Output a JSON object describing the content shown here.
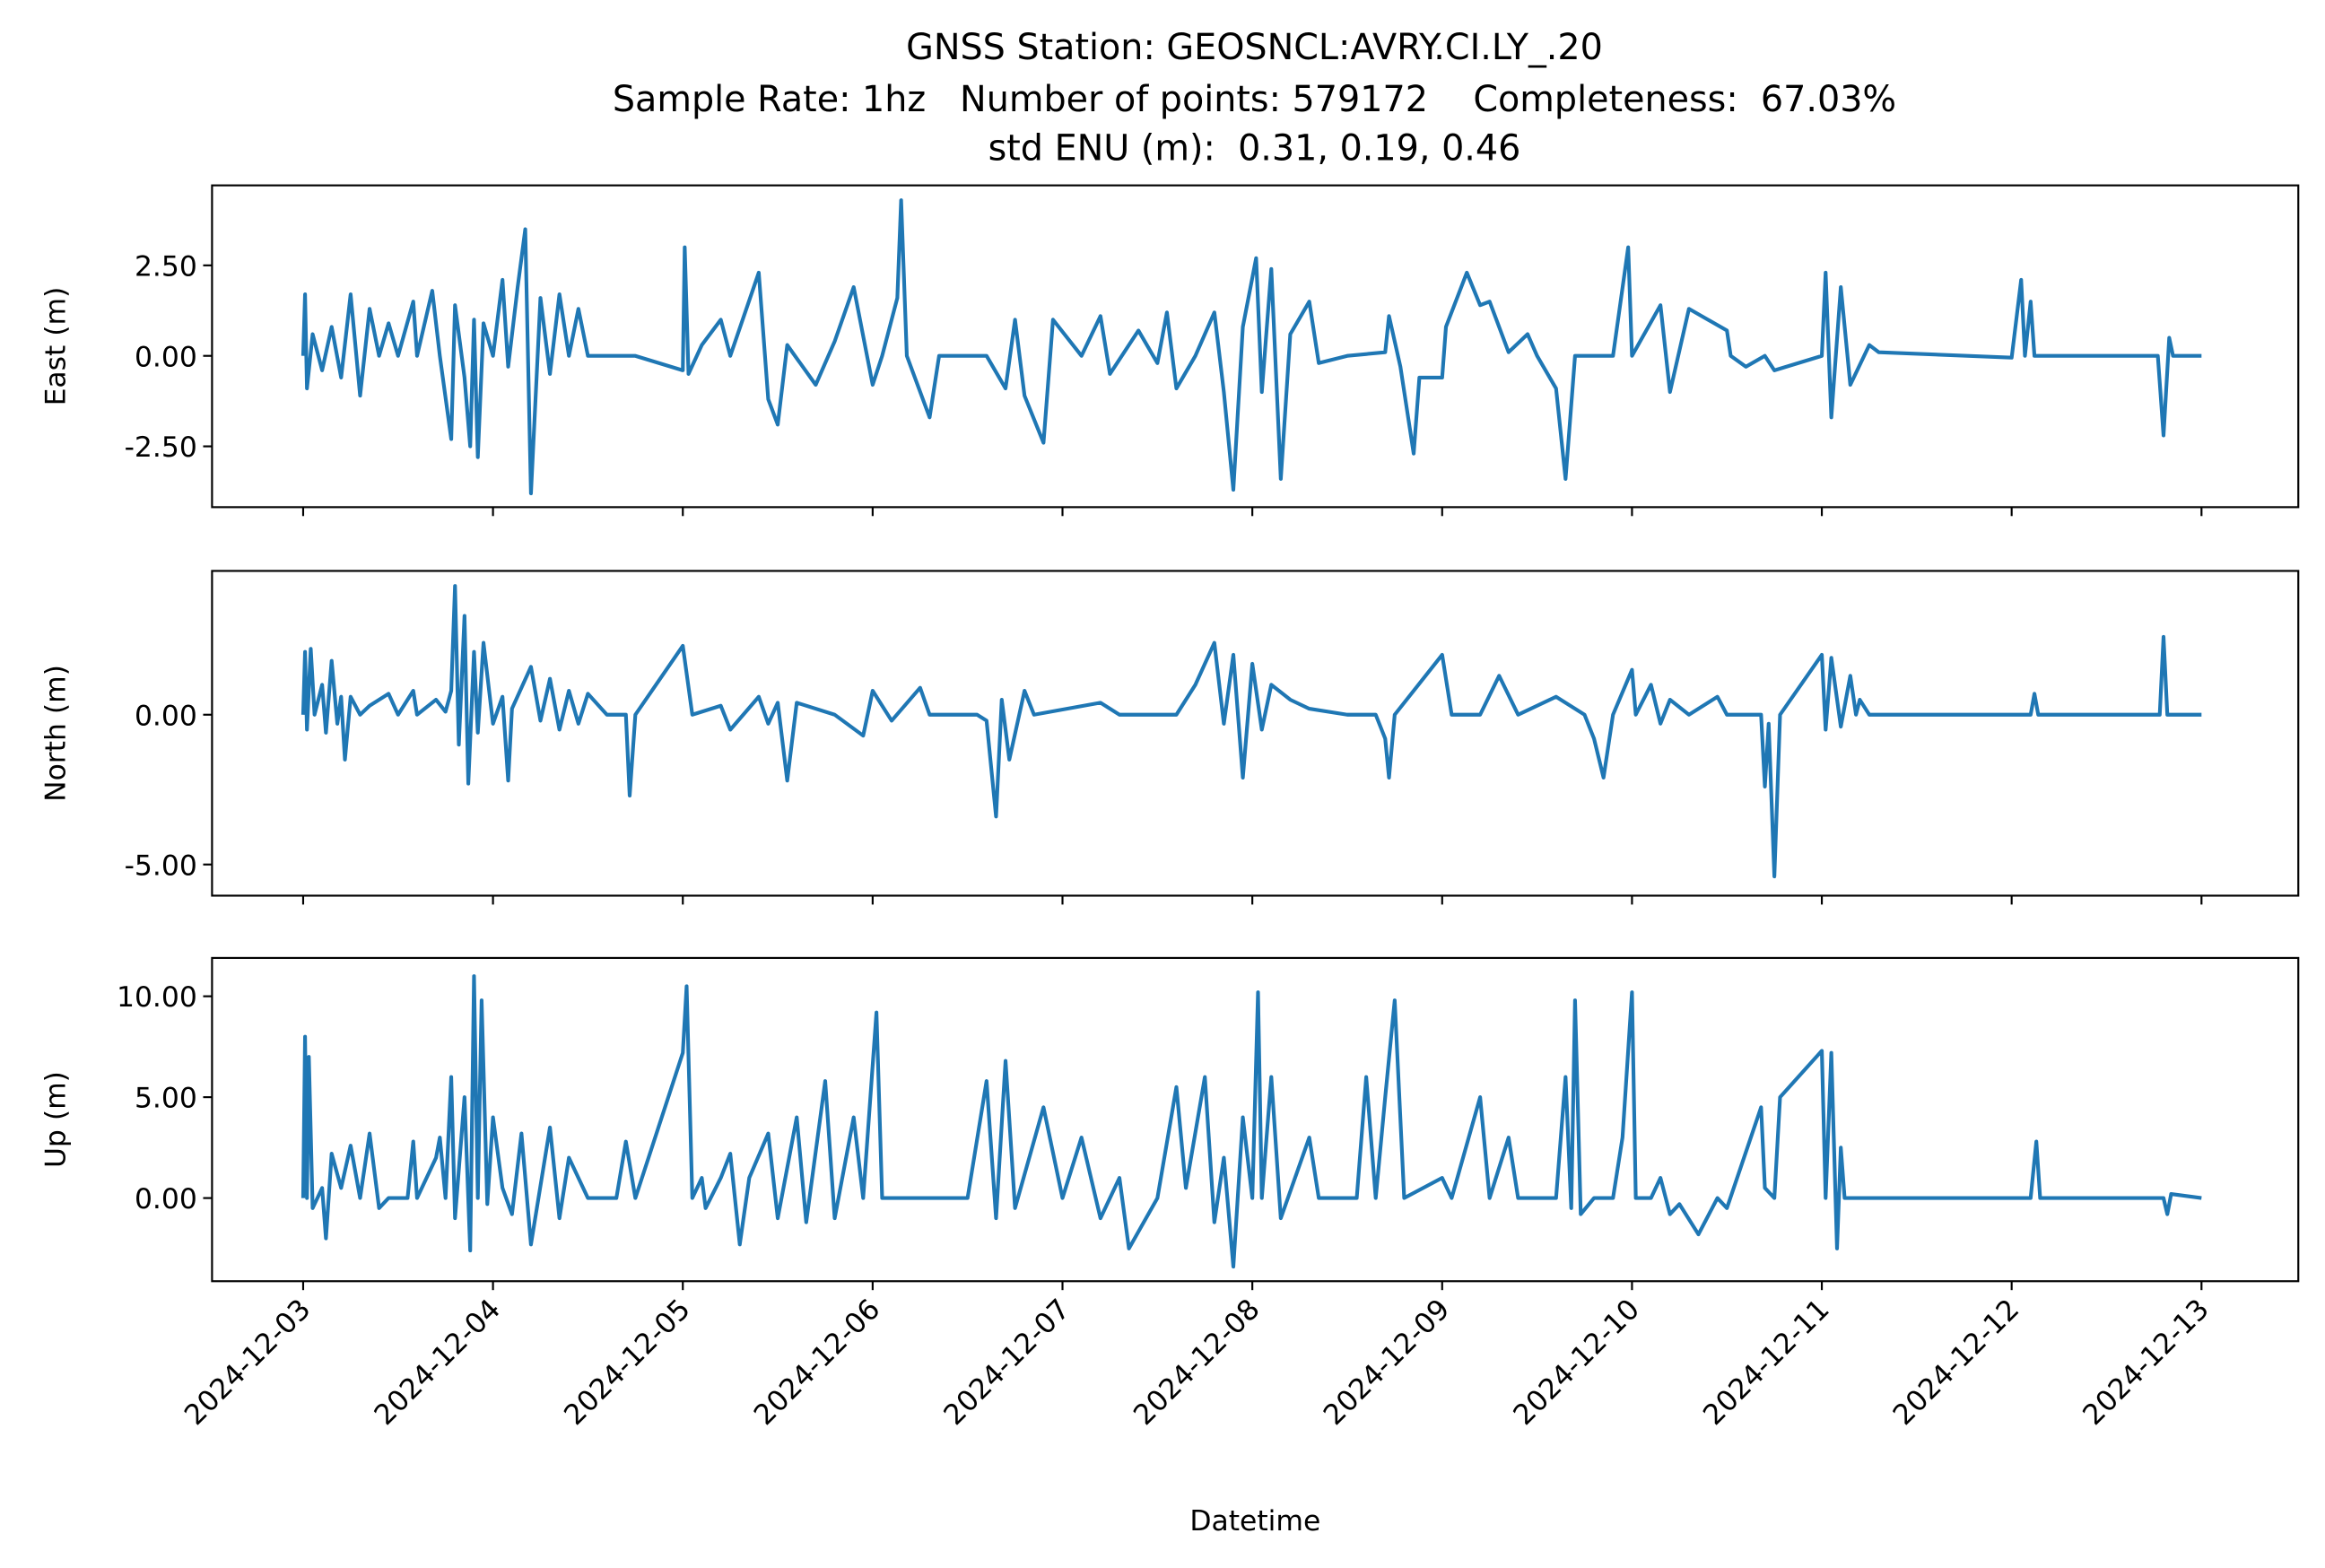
{
  "title": [
    "GNSS Station: GEOSNCL:AVRY.CI.LY_.20",
    "Sample Rate: 1hz   Number of points: 579172    Completeness:  67.03%",
    "std ENU (m):  0.31, 0.19, 0.46"
  ],
  "chart_data": [
    {
      "type": "line",
      "ylabel": "East (m)",
      "color": "#1f77b4",
      "xlim": [
        -0.48,
        10.51
      ],
      "ylim": [
        -4.18,
        4.71
      ],
      "yticks": [
        {
          "value": -2.5,
          "label": "-2.50"
        },
        {
          "value": 0,
          "label": "0.00"
        },
        {
          "value": 2.5,
          "label": "2.50"
        }
      ],
      "x": [
        0,
        0.01,
        0.02,
        0.05,
        0.1,
        0.15,
        0.2,
        0.25,
        0.3,
        0.35,
        0.4,
        0.45,
        0.5,
        0.58,
        0.6,
        0.68,
        0.72,
        0.78,
        0.8,
        0.85,
        0.88,
        0.9,
        0.92,
        0.95,
        1.0,
        1.05,
        1.08,
        1.13,
        1.17,
        1.2,
        1.25,
        1.3,
        1.35,
        1.4,
        1.45,
        1.5,
        1.75,
        2.0,
        2.01,
        2.03,
        2.1,
        2.2,
        2.25,
        2.4,
        2.45,
        2.5,
        2.55,
        2.7,
        2.8,
        2.9,
        3.0,
        3.05,
        3.13,
        3.15,
        3.18,
        3.3,
        3.35,
        3.6,
        3.7,
        3.75,
        3.8,
        3.9,
        3.95,
        4.1,
        4.2,
        4.25,
        4.4,
        4.5,
        4.55,
        4.6,
        4.7,
        4.8,
        4.85,
        4.9,
        4.95,
        5.02,
        5.05,
        5.1,
        5.15,
        5.2,
        5.3,
        5.35,
        5.5,
        5.7,
        5.72,
        5.78,
        5.85,
        5.88,
        6.0,
        6.02,
        6.13,
        6.2,
        6.25,
        6.35,
        6.45,
        6.5,
        6.6,
        6.65,
        6.7,
        6.9,
        6.98,
        7.0,
        7.15,
        7.2,
        7.3,
        7.5,
        7.52,
        7.6,
        7.7,
        7.75,
        8.0,
        8.02,
        8.05,
        8.1,
        8.15,
        8.25,
        8.3,
        9.0,
        9.05,
        9.07,
        9.1,
        9.12,
        9.77,
        9.8,
        9.83,
        9.85,
        10.0
      ],
      "values": [
        0,
        1.7,
        -0.9,
        0.6,
        -0.4,
        0.8,
        -0.6,
        1.7,
        -1.1,
        1.3,
        0,
        0.9,
        0,
        1.5,
        0,
        1.8,
        0,
        -2.3,
        1.4,
        -0.6,
        -2.5,
        1.0,
        -2.8,
        0.9,
        0,
        2.1,
        -0.3,
        1.9,
        3.5,
        -3.8,
        1.6,
        -0.5,
        1.7,
        0,
        1.3,
        0,
        0,
        -0.4,
        3.0,
        -0.5,
        0.3,
        1.0,
        0,
        2.3,
        -1.2,
        -1.9,
        0.3,
        -0.8,
        0.4,
        1.9,
        -0.8,
        0,
        1.6,
        4.3,
        0,
        -1.7,
        0,
        0,
        -0.9,
        1.0,
        -1.1,
        -2.4,
        1.0,
        0,
        1.1,
        -0.5,
        0.7,
        -0.2,
        1.2,
        -0.9,
        0,
        1.2,
        -1.0,
        -3.7,
        0.8,
        2.7,
        -1.0,
        2.4,
        -3.4,
        0.6,
        1.5,
        -0.2,
        0,
        0.1,
        1.1,
        -0.3,
        -2.7,
        -0.6,
        -0.6,
        0.8,
        2.3,
        1.4,
        1.5,
        0.1,
        0.6,
        0,
        -0.9,
        -3.4,
        0,
        0,
        3.0,
        0,
        1.4,
        -1.0,
        1.3,
        0.7,
        0,
        -0.3,
        0,
        -0.4,
        0,
        2.3,
        -1.7,
        1.9,
        -0.8,
        0.3,
        0.1,
        -0.05,
        2.1,
        0,
        1.5,
        0,
        0,
        -2.2,
        0.5,
        0,
        0
      ]
    },
    {
      "type": "line",
      "ylabel": "North (m)",
      "color": "#1f77b4",
      "xlim": [
        -0.48,
        10.51
      ],
      "ylim": [
        -6.04,
        4.8
      ],
      "yticks": [
        {
          "value": -5,
          "label": "-5.00"
        },
        {
          "value": 0,
          "label": "0.00"
        }
      ],
      "x": [
        0,
        0.01,
        0.02,
        0.04,
        0.06,
        0.1,
        0.12,
        0.15,
        0.18,
        0.2,
        0.22,
        0.25,
        0.3,
        0.35,
        0.45,
        0.5,
        0.58,
        0.6,
        0.7,
        0.75,
        0.78,
        0.8,
        0.82,
        0.85,
        0.87,
        0.9,
        0.92,
        0.95,
        1.0,
        1.05,
        1.08,
        1.1,
        1.2,
        1.25,
        1.3,
        1.35,
        1.4,
        1.45,
        1.5,
        1.6,
        1.7,
        1.72,
        1.75,
        2.0,
        2.05,
        2.2,
        2.25,
        2.4,
        2.45,
        2.5,
        2.55,
        2.6,
        2.8,
        2.95,
        3.0,
        3.1,
        3.25,
        3.3,
        3.55,
        3.6,
        3.65,
        3.68,
        3.72,
        3.8,
        3.85,
        4.2,
        4.3,
        4.6,
        4.7,
        4.8,
        4.85,
        4.9,
        4.95,
        5.0,
        5.05,
        5.1,
        5.2,
        5.3,
        5.5,
        5.65,
        5.7,
        5.72,
        5.75,
        6.0,
        6.05,
        6.2,
        6.3,
        6.4,
        6.6,
        6.75,
        6.8,
        6.85,
        6.9,
        7.0,
        7.02,
        7.1,
        7.15,
        7.2,
        7.3,
        7.45,
        7.5,
        7.68,
        7.7,
        7.72,
        7.75,
        7.78,
        8.0,
        8.02,
        8.05,
        8.1,
        8.15,
        8.18,
        8.2,
        8.25,
        9.1,
        9.12,
        9.14,
        9.78,
        9.8,
        9.82,
        10.0
      ],
      "values": [
        0,
        2.1,
        -0.5,
        2.2,
        0,
        1.0,
        -0.6,
        1.8,
        -0.3,
        0.6,
        -1.5,
        0.6,
        0,
        0.3,
        0.7,
        0,
        0.8,
        0,
        0.5,
        0.1,
        0.8,
        4.3,
        -1.0,
        3.3,
        -2.3,
        2.1,
        -0.6,
        2.4,
        -0.3,
        0.6,
        -2.2,
        0.2,
        1.6,
        -0.2,
        1.2,
        -0.5,
        0.8,
        -0.3,
        0.7,
        0,
        0,
        -2.7,
        0,
        2.3,
        0,
        0.3,
        -0.5,
        0.6,
        -0.3,
        0.4,
        -2.2,
        0.4,
        0,
        -0.7,
        0.8,
        -0.2,
        0.9,
        0,
        0,
        -0.2,
        -3.4,
        0.5,
        -1.5,
        0.8,
        0,
        0.4,
        0,
        0,
        1.0,
        2.4,
        -0.3,
        2.0,
        -2.1,
        1.7,
        -0.5,
        1.0,
        0.5,
        0.2,
        0,
        0,
        -0.8,
        -2.1,
        0,
        2.0,
        0,
        0,
        1.3,
        0,
        0.6,
        0,
        -0.8,
        -2.1,
        0,
        1.5,
        0,
        1.0,
        -0.3,
        0.5,
        0,
        0.6,
        0,
        0,
        -2.4,
        -0.3,
        -5.4,
        0,
        2.0,
        -0.5,
        1.9,
        -0.4,
        1.3,
        0,
        0.5,
        0,
        0,
        0.7,
        0,
        0,
        2.6,
        0,
        0
      ]
    },
    {
      "type": "line",
      "ylabel": "Up (m)",
      "xlabel": "Datetime",
      "color": "#1f77b4",
      "xlim": [
        -0.48,
        10.51
      ],
      "ylim": [
        -4.12,
        11.9
      ],
      "yticks": [
        {
          "value": 0,
          "label": "0.00"
        },
        {
          "value": 5,
          "label": "5.00"
        },
        {
          "value": 10,
          "label": "10.00"
        }
      ],
      "xticks": [
        {
          "value": 0,
          "label": "2024-12-03"
        },
        {
          "value": 1,
          "label": "2024-12-04"
        },
        {
          "value": 2,
          "label": "2024-12-05"
        },
        {
          "value": 3,
          "label": "2024-12-06"
        },
        {
          "value": 4,
          "label": "2024-12-07"
        },
        {
          "value": 5,
          "label": "2024-12-08"
        },
        {
          "value": 6,
          "label": "2024-12-09"
        },
        {
          "value": 7,
          "label": "2024-12-10"
        },
        {
          "value": 8,
          "label": "2024-12-11"
        },
        {
          "value": 9,
          "label": "2024-12-12"
        },
        {
          "value": 10,
          "label": "2024-12-13"
        }
      ],
      "x": [
        0,
        0.01,
        0.02,
        0.03,
        0.05,
        0.1,
        0.12,
        0.15,
        0.2,
        0.25,
        0.3,
        0.35,
        0.4,
        0.45,
        0.55,
        0.58,
        0.6,
        0.7,
        0.72,
        0.75,
        0.78,
        0.8,
        0.85,
        0.88,
        0.9,
        0.92,
        0.94,
        0.97,
        1.0,
        1.05,
        1.1,
        1.15,
        1.2,
        1.3,
        1.35,
        1.4,
        1.5,
        1.65,
        1.7,
        1.75,
        2.0,
        2.02,
        2.05,
        2.1,
        2.12,
        2.2,
        2.25,
        2.3,
        2.35,
        2.45,
        2.5,
        2.6,
        2.65,
        2.75,
        2.8,
        2.9,
        2.95,
        3.02,
        3.05,
        3.5,
        3.6,
        3.65,
        3.7,
        3.75,
        3.9,
        4.0,
        4.1,
        4.2,
        4.3,
        4.35,
        4.5,
        4.6,
        4.65,
        4.75,
        4.8,
        4.85,
        4.9,
        4.95,
        5.0,
        5.03,
        5.05,
        5.1,
        5.15,
        5.3,
        5.35,
        5.55,
        5.6,
        5.65,
        5.7,
        5.75,
        5.8,
        6.0,
        6.05,
        6.2,
        6.25,
        6.35,
        6.4,
        6.6,
        6.65,
        6.68,
        6.7,
        6.73,
        6.8,
        6.9,
        6.95,
        7.0,
        7.02,
        7.1,
        7.15,
        7.2,
        7.25,
        7.35,
        7.45,
        7.5,
        7.68,
        7.7,
        7.75,
        7.78,
        8.0,
        8.02,
        8.05,
        8.08,
        8.1,
        8.12,
        8.2,
        9.1,
        9.13,
        9.15,
        9.8,
        9.82,
        9.84,
        10.0
      ],
      "values": [
        0,
        8.0,
        0,
        7.0,
        -0.5,
        0.5,
        -2.0,
        2.2,
        0.5,
        2.6,
        0,
        3.2,
        -0.5,
        0,
        0,
        2.8,
        0,
        2.0,
        3.0,
        0,
        6.0,
        -1.0,
        5.0,
        -2.6,
        11.0,
        0,
        9.8,
        -0.3,
        4.0,
        0.5,
        -0.8,
        3.2,
        -2.3,
        3.5,
        -1.0,
        2.0,
        0,
        0,
        2.8,
        0,
        7.2,
        10.5,
        0,
        1.0,
        -0.5,
        1.0,
        2.2,
        -2.3,
        1.0,
        3.2,
        -1.0,
        4.0,
        -1.2,
        5.8,
        -1.0,
        4.0,
        0,
        9.2,
        0,
        0,
        5.8,
        -1.0,
        6.8,
        -0.5,
        4.5,
        0,
        3.0,
        -1.0,
        1.0,
        -2.5,
        0,
        5.5,
        0.5,
        6.0,
        -1.2,
        2.0,
        -3.4,
        4.0,
        0,
        10.2,
        0,
        6.0,
        -1.0,
        3.0,
        0,
        0,
        6.0,
        0,
        5.0,
        9.8,
        0,
        1.0,
        0,
        5.0,
        0,
        3.0,
        0,
        0,
        6.0,
        -0.5,
        9.8,
        -0.8,
        0,
        0,
        3.0,
        10.2,
        0,
        0,
        1.0,
        -0.8,
        -0.3,
        -1.8,
        0,
        -0.5,
        4.5,
        0.5,
        0,
        5.0,
        7.3,
        0,
        7.2,
        -2.5,
        2.5,
        0,
        0,
        0,
        2.8,
        0,
        0,
        -0.8,
        0.2,
        0
      ]
    }
  ]
}
